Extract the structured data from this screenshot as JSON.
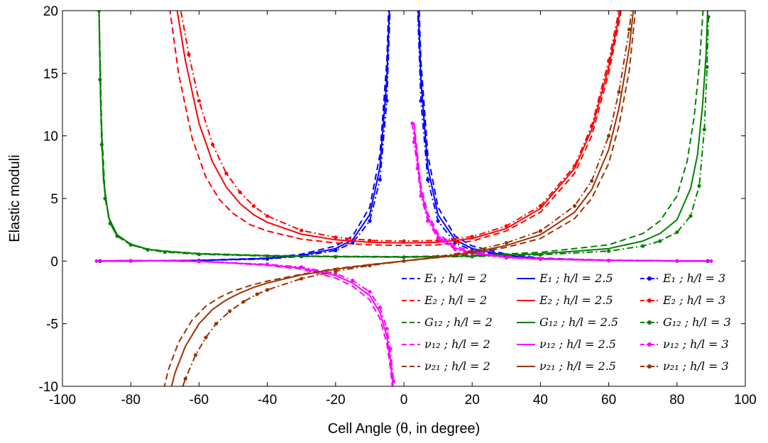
{
  "chart_data": {
    "type": "line",
    "title": "",
    "xlabel": "Cell Angle (θ, in degree)",
    "ylabel": "Elastic moduli",
    "xlim": [
      -100,
      100
    ],
    "ylim": [
      -10,
      20
    ],
    "xticks": [
      -100,
      -80,
      -60,
      -40,
      -20,
      0,
      20,
      40,
      60,
      80,
      100
    ],
    "yticks": [
      -10,
      -5,
      0,
      5,
      10,
      15,
      20
    ],
    "xtick_labels": [
      "-100",
      "-80",
      "-60",
      "-40",
      "-20",
      "0",
      "20",
      "40",
      "60",
      "80",
      "100"
    ],
    "ytick_labels": [
      "-10",
      "-5",
      "0",
      "5",
      "10",
      "15",
      "20"
    ],
    "grid": false,
    "legend_position": "bottom-right",
    "line_styles": {
      "h/l = 2": "dashed",
      "h/l = 2.5": "solid",
      "h/l = 3": "dash-dot with dot markers"
    },
    "series": [
      {
        "name": "E1 ; h/l = 2",
        "label": "E₁ ;  h/l = 2",
        "color": "#0000ff",
        "style": "dashed",
        "x": [
          -89,
          -80,
          -60,
          -40,
          -30,
          -20,
          -15,
          -10,
          -7,
          -5,
          -4,
          4,
          5,
          7,
          10,
          15,
          20,
          30,
          40,
          60,
          80,
          89
        ],
        "y": [
          0.0,
          0.01,
          0.06,
          0.24,
          0.55,
          1.2,
          2.0,
          4.3,
          8.5,
          16.0,
          24.0,
          24.0,
          16.0,
          8.5,
          4.3,
          2.0,
          1.2,
          0.55,
          0.24,
          0.06,
          0.01,
          0.0
        ]
      },
      {
        "name": "E1 ; h/l = 2.5",
        "label": "E₁ ;  h/l = 2.5",
        "color": "#0000ff",
        "style": "solid",
        "x": [
          -89,
          -80,
          -60,
          -40,
          -30,
          -20,
          -15,
          -10,
          -7,
          -5,
          -4,
          4,
          5,
          7,
          10,
          15,
          20,
          30,
          40,
          60,
          80,
          89
        ],
        "y": [
          0.0,
          0.01,
          0.05,
          0.2,
          0.45,
          1.0,
          1.7,
          3.7,
          7.5,
          14.5,
          22.0,
          22.0,
          14.5,
          7.5,
          3.7,
          1.7,
          1.0,
          0.45,
          0.2,
          0.05,
          0.01,
          0.0
        ]
      },
      {
        "name": "E1 ; h/l = 3",
        "label": "E₁ ;  h/l = 3",
        "color": "#0000ff",
        "style": "dashdot",
        "x": [
          -89,
          -80,
          -60,
          -40,
          -30,
          -20,
          -15,
          -10,
          -7,
          -5,
          -4,
          4,
          5,
          7,
          10,
          15,
          20,
          30,
          40,
          60,
          80,
          89
        ],
        "y": [
          0.0,
          0.01,
          0.04,
          0.17,
          0.38,
          0.85,
          1.45,
          3.2,
          6.5,
          12.8,
          20.5,
          20.5,
          12.8,
          6.5,
          3.2,
          1.45,
          0.85,
          0.38,
          0.17,
          0.04,
          0.01,
          0.0
        ]
      },
      {
        "name": "E2 ; h/l = 2",
        "label": "E₂ ;  h/l = 2",
        "color": "#ff0000",
        "style": "dashed",
        "x": [
          -69,
          -66,
          -62,
          -58,
          -54,
          -50,
          -45,
          -40,
          -30,
          -20,
          -10,
          0,
          10,
          20,
          30,
          40,
          50,
          55,
          60,
          63,
          66
        ],
        "y": [
          21,
          15,
          9.8,
          6.7,
          4.9,
          3.8,
          2.9,
          2.4,
          1.75,
          1.45,
          1.3,
          1.25,
          1.3,
          1.6,
          2.4,
          3.9,
          7.0,
          10.0,
          15.0,
          19.0,
          24.0
        ]
      },
      {
        "name": "E2 ; h/l = 2.5",
        "label": "E₂ ;  h/l = 2.5",
        "color": "#ff0000",
        "style": "solid",
        "x": [
          -67,
          -64,
          -60,
          -56,
          -52,
          -48,
          -44,
          -40,
          -30,
          -20,
          -10,
          0,
          10,
          20,
          30,
          40,
          50,
          55,
          60,
          63,
          66
        ],
        "y": [
          21,
          16,
          11.0,
          7.9,
          5.9,
          4.6,
          3.7,
          3.1,
          2.15,
          1.7,
          1.5,
          1.45,
          1.5,
          1.8,
          2.6,
          4.2,
          7.4,
          10.5,
          15.5,
          19.5,
          24.5
        ]
      },
      {
        "name": "E2 ; h/l = 3",
        "label": "E₂ ;  h/l = 3",
        "color": "#ff0000",
        "style": "dashdot",
        "x": [
          -66,
          -63,
          -60,
          -56,
          -52,
          -48,
          -44,
          -40,
          -30,
          -20,
          -10,
          0,
          10,
          20,
          30,
          40,
          50,
          55,
          60,
          63,
          66
        ],
        "y": [
          21,
          16.5,
          12.8,
          9.3,
          7.0,
          5.5,
          4.4,
          3.6,
          2.45,
          1.9,
          1.65,
          1.6,
          1.65,
          1.95,
          2.8,
          4.4,
          7.6,
          10.8,
          16.0,
          20.0,
          25.0
        ]
      },
      {
        "name": "G12 ; h/l = 2",
        "label": "G₁₂ ;  h/l = 2",
        "color": "#008000",
        "style": "dashed",
        "x": [
          -89.3,
          -88.5,
          -87.5,
          -86,
          -84,
          -80,
          -75,
          -70,
          -60,
          -40,
          -20,
          0,
          20,
          40,
          60,
          70,
          75,
          80,
          83,
          85,
          86.5,
          87.5,
          88.5
        ],
        "y": [
          20,
          10.5,
          5.2,
          3.0,
          2.0,
          1.3,
          0.95,
          0.8,
          0.6,
          0.45,
          0.38,
          0.35,
          0.45,
          0.7,
          1.3,
          2.2,
          3.2,
          5.2,
          8.0,
          11.5,
          15.5,
          19.5,
          24.0
        ]
      },
      {
        "name": "G12 ; h/l = 2.5",
        "label": "G₁₂ ;  h/l = 2.5",
        "color": "#008000",
        "style": "solid",
        "x": [
          -89.3,
          -88.8,
          -88,
          -86.5,
          -84,
          -80,
          -75,
          -70,
          -60,
          -40,
          -20,
          0,
          20,
          40,
          60,
          70,
          75,
          80,
          84,
          86,
          87.5,
          88.5,
          89.1
        ],
        "y": [
          20,
          12.5,
          6.5,
          3.5,
          2.1,
          1.35,
          0.95,
          0.78,
          0.58,
          0.42,
          0.36,
          0.33,
          0.4,
          0.58,
          1.0,
          1.6,
          2.2,
          3.3,
          5.8,
          8.5,
          12.5,
          16.5,
          21.0
        ]
      },
      {
        "name": "G12 ; h/l = 3",
        "label": "G₁₂ ;  h/l = 3",
        "color": "#008000",
        "style": "dashdot",
        "x": [
          -89.3,
          -89,
          -88.5,
          -87.5,
          -86,
          -84,
          -80,
          -75,
          -70,
          -60,
          -40,
          -20,
          0,
          20,
          40,
          60,
          70,
          75,
          80,
          84,
          86.5,
          88,
          88.8,
          89.2
        ],
        "y": [
          20,
          14.5,
          9.3,
          5.0,
          3.0,
          2.0,
          1.3,
          0.9,
          0.72,
          0.54,
          0.4,
          0.34,
          0.31,
          0.36,
          0.5,
          0.8,
          1.2,
          1.6,
          2.3,
          3.6,
          6.0,
          10.5,
          15.5,
          19.5
        ]
      },
      {
        "name": "nu12 ; h/l = 2",
        "label": "ν₁₂ ;  h/l = 2",
        "color": "#ff00ff",
        "style": "dashed",
        "x": [
          -90,
          -80,
          -60,
          -40,
          -30,
          -20,
          -15,
          -10,
          -7,
          -5,
          -4,
          -3,
          3,
          4,
          5,
          7,
          10,
          15,
          20,
          30,
          40,
          60,
          80,
          90
        ],
        "y": [
          0.0,
          0.05,
          0.0,
          -0.35,
          -0.65,
          -1.35,
          -2.0,
          -3.1,
          -4.6,
          -6.6,
          -8.5,
          -11.0,
          11.0,
          8.5,
          6.0,
          3.8,
          2.2,
          1.2,
          0.75,
          0.35,
          0.2,
          0.08,
          0.02,
          0.0
        ]
      },
      {
        "name": "nu12 ; h/l = 2.5",
        "label": "ν₁₂ ;  h/l = 2.5",
        "color": "#ff00ff",
        "style": "solid",
        "x": [
          -90,
          -80,
          -60,
          -40,
          -30,
          -20,
          -15,
          -10,
          -7,
          -5,
          -4,
          -3,
          3,
          4,
          5,
          7,
          10,
          15,
          20,
          30,
          40,
          60,
          80,
          90
        ],
        "y": [
          0.0,
          0.04,
          -0.02,
          -0.3,
          -0.55,
          -1.15,
          -1.75,
          -2.75,
          -4.1,
          -6.0,
          -7.8,
          -10.5,
          10.5,
          8.0,
          5.6,
          3.5,
          2.0,
          1.05,
          0.65,
          0.3,
          0.17,
          0.06,
          0.02,
          0.0
        ]
      },
      {
        "name": "nu12 ; h/l = 3",
        "label": "ν₁₂ ;  h/l = 3",
        "color": "#ff00ff",
        "style": "dashdot",
        "x": [
          -90,
          -80,
          -60,
          -40,
          -30,
          -20,
          -15,
          -10,
          -7,
          -5,
          -4,
          -3,
          -2.5,
          2.5,
          3,
          4,
          5,
          7,
          10,
          15,
          20,
          30,
          40,
          60,
          80,
          90
        ],
        "y": [
          0.0,
          0.03,
          -0.03,
          -0.26,
          -0.48,
          -1.0,
          -1.55,
          -2.45,
          -3.7,
          -5.4,
          -7.0,
          -9.6,
          -11.0,
          11.0,
          9.5,
          7.4,
          5.2,
          3.2,
          1.8,
          0.95,
          0.6,
          0.27,
          0.15,
          0.05,
          0.01,
          0.0
        ]
      },
      {
        "name": "nu21 ; h/l = 2",
        "label": "ν₂₁ ;  h/l = 2",
        "color": "#993300",
        "style": "dashed",
        "x": [
          -71,
          -69,
          -66,
          -62,
          -58,
          -54,
          -50,
          -45,
          -40,
          -30,
          -20,
          -10,
          0,
          10,
          20,
          30,
          40,
          50,
          55,
          60,
          63,
          66,
          68
        ],
        "y": [
          -11.0,
          -8.7,
          -6.5,
          -4.7,
          -3.6,
          -2.9,
          -2.4,
          -1.95,
          -1.6,
          -1.05,
          -0.6,
          -0.28,
          0.0,
          0.28,
          0.6,
          1.1,
          1.8,
          3.4,
          5.0,
          7.8,
          10.8,
          15.2,
          20.5
        ]
      },
      {
        "name": "nu21 ; h/l = 2.5",
        "label": "ν₂₁ ;  h/l = 2.5",
        "color": "#993300",
        "style": "solid",
        "x": [
          -69,
          -67,
          -64,
          -60,
          -56,
          -52,
          -48,
          -44,
          -40,
          -30,
          -20,
          -10,
          0,
          10,
          20,
          30,
          40,
          50,
          55,
          60,
          63,
          66,
          68
        ],
        "y": [
          -11.0,
          -8.9,
          -6.8,
          -5.0,
          -3.85,
          -3.1,
          -2.55,
          -2.1,
          -1.75,
          -1.1,
          -0.65,
          -0.3,
          0.0,
          0.3,
          0.68,
          1.25,
          2.1,
          3.9,
          5.7,
          8.9,
          12.2,
          17.0,
          22.0
        ]
      },
      {
        "name": "nu21 ; h/l = 3",
        "label": "ν₂₁ ;  h/l = 3",
        "color": "#993300",
        "style": "dashdot",
        "x": [
          -66,
          -64,
          -61,
          -58,
          -55,
          -51,
          -47,
          -43,
          -40,
          -30,
          -20,
          -10,
          0,
          10,
          20,
          30,
          40,
          50,
          55,
          60,
          63,
          66,
          68
        ],
        "y": [
          -11.0,
          -9.4,
          -7.5,
          -6.1,
          -5.0,
          -4.0,
          -3.25,
          -2.65,
          -2.3,
          -1.4,
          -0.8,
          -0.36,
          0.0,
          0.36,
          0.8,
          1.45,
          2.4,
          4.4,
          6.4,
          10.0,
          13.5,
          18.5,
          23.0
        ]
      }
    ]
  }
}
